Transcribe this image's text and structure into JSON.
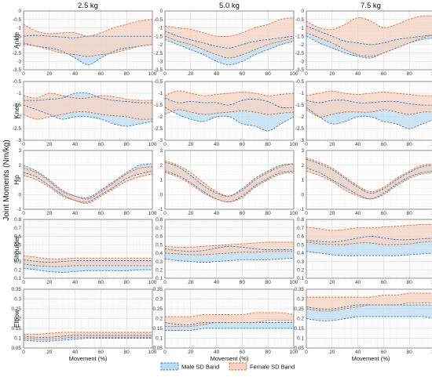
{
  "chart_data": {
    "type": "area",
    "ylabel": "Joint Moments (Nm/kg)",
    "xlabel": "Movement (%)",
    "xlim": [
      0,
      100
    ],
    "x_ticks": [
      0,
      20,
      40,
      60,
      80,
      100
    ],
    "x_samples": [
      0,
      10,
      20,
      30,
      40,
      50,
      60,
      70,
      80,
      90,
      100
    ],
    "grid": true,
    "legend_position": "bottom-center",
    "columns": [
      "2.5 kg",
      "5.0 kg",
      "7.5 kg"
    ],
    "rows": [
      {
        "label": "Ankle",
        "ylim": [
          -3.5,
          0
        ],
        "yticks": [
          0,
          -0.5,
          -1,
          -1.5,
          -2,
          -2.5,
          -3,
          -3.5
        ],
        "tick_labels": [
          "0",
          "-0.5",
          "-1",
          "-1.5",
          "-2",
          "-2.5",
          "-3",
          "-3.5"
        ]
      },
      {
        "label": "Knee",
        "ylim": [
          -3,
          -0.5
        ],
        "yticks": [
          -0.5,
          -1,
          -1.5,
          -2,
          -2.5,
          -3
        ],
        "tick_labels": [
          "-0.5",
          "-1",
          "-1.5",
          "-2",
          "-2.5",
          "-3"
        ]
      },
      {
        "label": "Hip",
        "ylim": [
          -1,
          3
        ],
        "yticks": [
          3,
          2,
          1,
          0,
          -1
        ],
        "tick_labels": [
          "3",
          "2",
          "1",
          "0",
          "-1"
        ]
      },
      {
        "label": "Shoulder",
        "ylim": [
          0.1,
          0.8
        ],
        "yticks": [
          0.8,
          0.7,
          0.6,
          0.5,
          0.4,
          0.3,
          0.2,
          0.1
        ],
        "tick_labels": [
          "0.8",
          "0.7",
          "0.6",
          "0.5",
          "0.4",
          "0.3",
          "0.2",
          "0.1"
        ]
      },
      {
        "label": "Elbow",
        "ylim": [
          0.05,
          0.35
        ],
        "yticks": [
          0.35,
          0.3,
          0.25,
          0.2,
          0.15,
          0.1,
          0.05
        ],
        "tick_labels": [
          "0.35",
          "0.3",
          "0.25",
          "0.2",
          "0.15",
          "0.1",
          "0.05"
        ]
      }
    ],
    "legend": [
      {
        "name": "Male SD Band",
        "fill": "#bcdcf0",
        "stroke": "#3b7ec9"
      },
      {
        "name": "Female SD Band",
        "fill": "#f6d3c2",
        "stroke": "#e06a32"
      }
    ],
    "overlap_fill": "#c7bfc1",
    "panels": [
      [
        {
          "male": {
            "upper": [
              -1.5,
              -1.45,
              -1.5,
              -1.55,
              -1.6,
              -1.5,
              -1.5,
              -1.5,
              -1.5,
              -1.5,
              -1.5
            ],
            "lower": [
              -1.9,
              -2.1,
              -2.2,
              -2.4,
              -2.8,
              -3.2,
              -2.8,
              -2.4,
              -2.2,
              -2.1,
              -2.0
            ]
          },
          "female": {
            "upper": [
              -0.8,
              -1.2,
              -1.35,
              -1.3,
              -1.3,
              -1.5,
              -1.3,
              -1.0,
              -0.8,
              -0.6,
              -0.5
            ],
            "lower": [
              -2.0,
              -2.1,
              -2.3,
              -2.5,
              -2.6,
              -2.7,
              -2.6,
              -2.5,
              -2.3,
              -2.1,
              -2.0
            ]
          }
        },
        {
          "male": {
            "upper": [
              -1.2,
              -1.5,
              -1.7,
              -1.9,
              -2.1,
              -2.2,
              -2.0,
              -1.8,
              -1.7,
              -1.6,
              -1.5
            ],
            "lower": [
              -1.7,
              -2.0,
              -2.3,
              -2.6,
              -3.0,
              -3.2,
              -3.0,
              -2.6,
              -2.3,
              -2.0,
              -1.8
            ]
          },
          "female": {
            "upper": [
              -0.9,
              -1.0,
              -1.1,
              -1.3,
              -1.5,
              -1.5,
              -1.3,
              -1.0,
              -0.8,
              -0.5,
              -0.4
            ],
            "lower": [
              -1.5,
              -1.8,
              -2.0,
              -2.3,
              -2.6,
              -2.8,
              -2.6,
              -2.3,
              -2.0,
              -1.8,
              -1.6
            ]
          }
        },
        {
          "male": {
            "upper": [
              -0.9,
              -1.2,
              -1.5,
              -1.8,
              -1.9,
              -2.0,
              -1.9,
              -1.7,
              -1.6,
              -1.5,
              -1.4
            ],
            "lower": [
              -1.5,
              -1.9,
              -2.2,
              -2.5,
              -2.7,
              -2.8,
              -2.5,
              -2.2,
              -1.9,
              -1.7,
              -1.6
            ]
          },
          "female": {
            "upper": [
              -0.6,
              -1.0,
              -1.1,
              -0.8,
              -0.4,
              -0.6,
              -1.0,
              -0.8,
              -0.5,
              -0.3,
              -0.3
            ],
            "lower": [
              -1.3,
              -1.6,
              -1.9,
              -2.3,
              -2.6,
              -2.7,
              -2.5,
              -2.2,
              -1.9,
              -1.6,
              -1.4
            ]
          }
        }
      ],
      [
        {
          "male": {
            "upper": [
              -1.3,
              -1.3,
              -1.25,
              -1.2,
              -1.0,
              -1.0,
              -1.2,
              -1.3,
              -1.35,
              -1.4,
              -1.4
            ],
            "lower": [
              -1.5,
              -1.7,
              -1.9,
              -2.1,
              -2.0,
              -2.0,
              -2.1,
              -2.3,
              -2.4,
              -2.3,
              -2.2
            ]
          },
          "female": {
            "upper": [
              -1.1,
              -1.2,
              -1.0,
              -1.1,
              -1.2,
              -1.2,
              -1.1,
              -1.15,
              -1.25,
              -1.3,
              -1.3
            ],
            "lower": [
              -1.9,
              -2.1,
              -2.0,
              -1.9,
              -1.8,
              -1.8,
              -1.9,
              -1.95,
              -2.0,
              -2.1,
              -2.1
            ]
          }
        },
        {
          "male": {
            "upper": [
              -1.2,
              -1.4,
              -1.35,
              -1.4,
              -1.4,
              -1.5,
              -1.3,
              -1.25,
              -1.35,
              -1.6,
              -1.6
            ],
            "lower": [
              -1.6,
              -1.9,
              -2.1,
              -2.2,
              -2.0,
              -2.0,
              -2.3,
              -2.4,
              -2.6,
              -2.3,
              -2.0
            ]
          },
          "female": {
            "upper": [
              -1.1,
              -0.9,
              -1.0,
              -1.1,
              -1.05,
              -1.0,
              -0.95,
              -1.0,
              -1.1,
              -1.05,
              -1.0
            ]
          }
        },
        {
          "male": {
            "upper": [
              -1.3,
              -1.4,
              -1.3,
              -1.3,
              -1.4,
              -1.4,
              -1.35,
              -1.35,
              -1.45,
              -1.5,
              -1.5
            ],
            "lower": [
              -1.6,
              -2.0,
              -2.3,
              -2.2,
              -2.0,
              -2.0,
              -2.2,
              -2.3,
              -2.5,
              -2.3,
              -2.1
            ]
          },
          "female": {
            "upper": [
              -1.1,
              -1.0,
              -0.9,
              -1.0,
              -1.05,
              -1.0,
              -0.95,
              -1.0,
              -1.05,
              -1.1,
              -1.1
            ],
            "lower": [
              -1.7,
              -2.0,
              -1.9,
              -1.8,
              -1.8,
              -1.8,
              -1.7,
              -1.8,
              -1.9,
              -1.8,
              -1.8
            ]
          }
        }
      ],
      [
        {
          "male": {
            "upper": [
              2.0,
              1.6,
              1.0,
              0.3,
              -0.1,
              -0.2,
              0.3,
              0.9,
              1.5,
              2.0,
              2.1
            ],
            "lower": [
              1.5,
              1.2,
              0.6,
              0.0,
              -0.4,
              -0.5,
              0.0,
              0.5,
              1.1,
              1.4,
              1.6
            ]
          },
          "female": {
            "upper": [
              1.8,
              1.5,
              0.9,
              0.2,
              -0.1,
              -0.3,
              0.2,
              0.8,
              1.4,
              1.8,
              1.9
            ],
            "lower": [
              1.3,
              1.0,
              0.5,
              -0.1,
              -0.4,
              -0.6,
              -0.1,
              0.4,
              0.9,
              1.2,
              1.4
            ]
          }
        },
        {
          "male": {
            "upper": [
              2.2,
              1.9,
              1.3,
              0.6,
              0.1,
              -0.1,
              0.4,
              1.1,
              1.6,
              2.0,
              2.1
            ],
            "lower": [
              1.6,
              1.3,
              0.8,
              0.2,
              -0.3,
              -0.5,
              -0.1,
              0.6,
              1.1,
              1.5,
              1.6
            ]
          },
          "female": {
            "upper": [
              2.3,
              2.0,
              1.5,
              0.8,
              0.2,
              -0.1,
              0.3,
              1.0,
              1.5,
              1.9,
              2.1
            ],
            "lower": [
              1.5,
              1.2,
              0.7,
              0.1,
              -0.3,
              -0.5,
              -0.2,
              0.5,
              1.0,
              1.4,
              1.5
            ]
          }
        },
        {
          "male": {
            "upper": [
              2.4,
              2.1,
              1.7,
              1.1,
              0.5,
              0.1,
              0.4,
              1.0,
              1.5,
              1.9,
              2.0
            ],
            "lower": [
              1.8,
              1.5,
              1.0,
              0.5,
              0.0,
              -0.3,
              0.1,
              0.7,
              1.2,
              1.5,
              1.6
            ]
          },
          "female": {
            "upper": [
              2.5,
              2.2,
              1.8,
              1.2,
              0.6,
              0.2,
              0.5,
              1.1,
              1.6,
              2.0,
              2.1
            ],
            "lower": [
              1.6,
              1.3,
              0.9,
              0.3,
              -0.1,
              -0.3,
              0.0,
              0.6,
              1.1,
              1.4,
              1.5
            ]
          }
        }
      ],
      [
        {
          "male": {
            "upper": [
              0.32,
              0.3,
              0.29,
              0.3,
              0.31,
              0.31,
              0.31,
              0.31,
              0.31,
              0.31,
              0.31
            ],
            "lower": [
              0.22,
              0.2,
              0.18,
              0.17,
              0.18,
              0.19,
              0.19,
              0.19,
              0.19,
              0.2,
              0.2
            ]
          },
          "female": {
            "upper": [
              0.37,
              0.35,
              0.33,
              0.33,
              0.34,
              0.34,
              0.34,
              0.34,
              0.34,
              0.34,
              0.34
            ],
            "lower": [
              0.27,
              0.25,
              0.24,
              0.24,
              0.25,
              0.25,
              0.25,
              0.25,
              0.25,
              0.25,
              0.25
            ]
          }
        },
        {
          "male": {
            "upper": [
              0.45,
              0.43,
              0.42,
              0.43,
              0.46,
              0.48,
              0.47,
              0.45,
              0.44,
              0.44,
              0.44
            ],
            "lower": [
              0.33,
              0.31,
              0.3,
              0.29,
              0.3,
              0.31,
              0.32,
              0.32,
              0.32,
              0.33,
              0.34
            ]
          },
          "female": {
            "upper": [
              0.48,
              0.47,
              0.47,
              0.48,
              0.49,
              0.5,
              0.51,
              0.52,
              0.53,
              0.53,
              0.53
            ],
            "lower": [
              0.4,
              0.39,
              0.38,
              0.38,
              0.39,
              0.4,
              0.41,
              0.41,
              0.42,
              0.42,
              0.42
            ]
          }
        },
        {
          "male": {
            "upper": [
              0.55,
              0.54,
              0.53,
              0.55,
              0.58,
              0.6,
              0.58,
              0.56,
              0.56,
              0.57,
              0.58
            ],
            "lower": [
              0.42,
              0.4,
              0.38,
              0.37,
              0.37,
              0.37,
              0.37,
              0.37,
              0.38,
              0.39,
              0.4
            ]
          },
          "female": {
            "upper": [
              0.71,
              0.69,
              0.67,
              0.68,
              0.7,
              0.7,
              0.71,
              0.72,
              0.73,
              0.74,
              0.74
            ],
            "lower": [
              0.53,
              0.51,
              0.5,
              0.5,
              0.52,
              0.52,
              0.5,
              0.5,
              0.51,
              0.53,
              0.54
            ]
          }
        }
      ],
      [
        {
          "male": {
            "upper": [
              0.11,
              0.105,
              0.105,
              0.11,
              0.115,
              0.115,
              0.115,
              0.115,
              0.115,
              0.115,
              0.115
            ],
            "lower": [
              0.09,
              0.085,
              0.085,
              0.09,
              0.095,
              0.1,
              0.1,
              0.1,
              0.1,
              0.1,
              0.1
            ]
          },
          "female": {
            "upper": [
              0.12,
              0.12,
              0.125,
              0.13,
              0.13,
              0.13,
              0.13,
              0.13,
              0.13,
              0.13,
              0.13
            ],
            "lower": [
              0.1,
              0.095,
              0.095,
              0.1,
              0.105,
              0.105,
              0.105,
              0.105,
              0.105,
              0.105,
              0.105
            ]
          }
        },
        {
          "male": {
            "upper": [
              0.18,
              0.17,
              0.17,
              0.18,
              0.18,
              0.18,
              0.18,
              0.18,
              0.18,
              0.18,
              0.18
            ],
            "lower": [
              0.14,
              0.14,
              0.14,
              0.15,
              0.15,
              0.15,
              0.15,
              0.15,
              0.15,
              0.15,
              0.15
            ]
          },
          "female": {
            "upper": [
              0.21,
              0.21,
              0.21,
              0.22,
              0.22,
              0.22,
              0.22,
              0.23,
              0.23,
              0.23,
              0.22
            ],
            "lower": [
              0.16,
              0.16,
              0.16,
              0.17,
              0.18,
              0.18,
              0.18,
              0.18,
              0.19,
              0.19,
              0.19
            ]
          }
        },
        {
          "male": {
            "upper": [
              0.26,
              0.25,
              0.25,
              0.26,
              0.27,
              0.27,
              0.27,
              0.27,
              0.27,
              0.27,
              0.27
            ],
            "lower": [
              0.2,
              0.19,
              0.19,
              0.2,
              0.21,
              0.21,
              0.21,
              0.21,
              0.21,
              0.21,
              0.2
            ]
          },
          "female": {
            "upper": [
              0.31,
              0.31,
              0.31,
              0.31,
              0.31,
              0.31,
              0.32,
              0.32,
              0.33,
              0.33,
              0.33
            ],
            "lower": [
              0.25,
              0.24,
              0.24,
              0.25,
              0.26,
              0.27,
              0.27,
              0.27,
              0.28,
              0.28,
              0.28
            ]
          }
        }
      ]
    ]
  }
}
